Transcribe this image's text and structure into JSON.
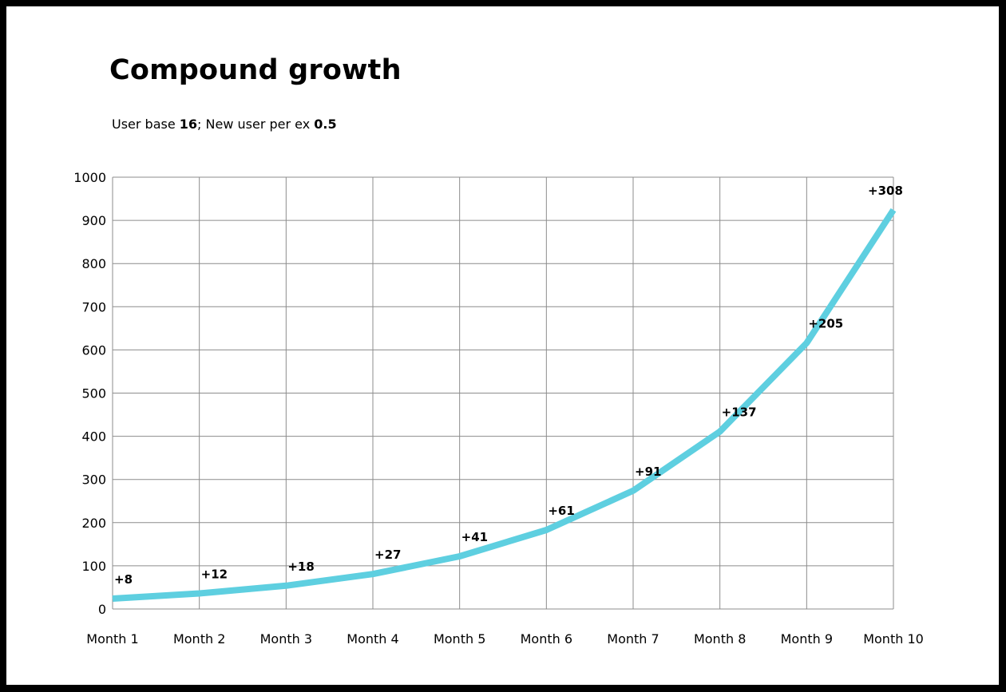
{
  "chart_data": {
    "type": "line",
    "title": "Compound growth",
    "subtitle": {
      "prefix": "User base ",
      "user_base": "16",
      "middle": "; New user per ex ",
      "rate": "0.5"
    },
    "categories": [
      "Month 1",
      "Month 2",
      "Month 3",
      "Month 4",
      "Month 5",
      "Month 6",
      "Month 7",
      "Month 8",
      "Month 9",
      "Month 10"
    ],
    "series": [
      {
        "values": [
          24,
          36,
          54,
          81,
          122,
          183,
          274,
          411,
          616,
          924
        ],
        "labels": [
          "+8",
          "+12",
          "+18",
          "+27",
          "+41",
          "+61",
          "+91",
          "+137",
          "+205",
          "+308"
        ],
        "color": "#5ecfe0"
      }
    ],
    "ylim": [
      0,
      1000
    ],
    "yticks": [
      "0",
      "100",
      "200",
      "300",
      "400",
      "500",
      "600",
      "700",
      "800",
      "900",
      "1000"
    ],
    "xlabel": "",
    "ylabel": "",
    "grid": true,
    "legend": "none"
  }
}
